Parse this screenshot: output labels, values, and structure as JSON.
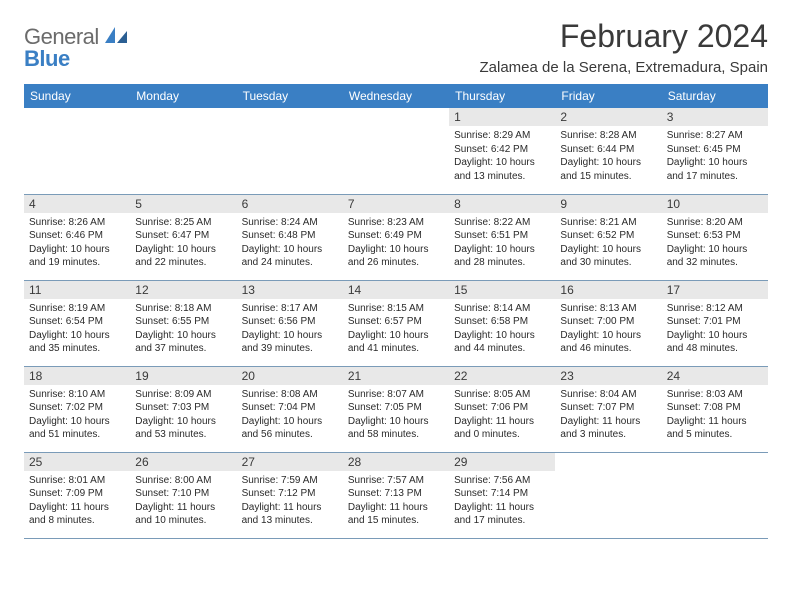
{
  "logo": {
    "text1": "General",
    "text2": "Blue"
  },
  "title": "February 2024",
  "location": "Zalamea de la Serena, Extremadura, Spain",
  "colors": {
    "header_bg": "#3a7fc4",
    "header_fg": "#ffffff",
    "daynum_bg": "#e8e8e8",
    "border": "#7a9bb8",
    "text": "#3a3a3a",
    "body_text": "#2a2a2a",
    "logo_gray": "#6b6b6b",
    "logo_blue": "#3a7fc4"
  },
  "typography": {
    "title_fontsize": 32,
    "location_fontsize": 15,
    "header_fontsize": 12,
    "daynum_fontsize": 12,
    "body_fontsize": 10
  },
  "weekdays": [
    "Sunday",
    "Monday",
    "Tuesday",
    "Wednesday",
    "Thursday",
    "Friday",
    "Saturday"
  ],
  "weeks": [
    [
      null,
      null,
      null,
      null,
      {
        "n": "1",
        "sunrise": "8:29 AM",
        "sunset": "6:42 PM",
        "daylight_h": "10",
        "daylight_m": "13"
      },
      {
        "n": "2",
        "sunrise": "8:28 AM",
        "sunset": "6:44 PM",
        "daylight_h": "10",
        "daylight_m": "15"
      },
      {
        "n": "3",
        "sunrise": "8:27 AM",
        "sunset": "6:45 PM",
        "daylight_h": "10",
        "daylight_m": "17"
      }
    ],
    [
      {
        "n": "4",
        "sunrise": "8:26 AM",
        "sunset": "6:46 PM",
        "daylight_h": "10",
        "daylight_m": "19"
      },
      {
        "n": "5",
        "sunrise": "8:25 AM",
        "sunset": "6:47 PM",
        "daylight_h": "10",
        "daylight_m": "22"
      },
      {
        "n": "6",
        "sunrise": "8:24 AM",
        "sunset": "6:48 PM",
        "daylight_h": "10",
        "daylight_m": "24"
      },
      {
        "n": "7",
        "sunrise": "8:23 AM",
        "sunset": "6:49 PM",
        "daylight_h": "10",
        "daylight_m": "26"
      },
      {
        "n": "8",
        "sunrise": "8:22 AM",
        "sunset": "6:51 PM",
        "daylight_h": "10",
        "daylight_m": "28"
      },
      {
        "n": "9",
        "sunrise": "8:21 AM",
        "sunset": "6:52 PM",
        "daylight_h": "10",
        "daylight_m": "30"
      },
      {
        "n": "10",
        "sunrise": "8:20 AM",
        "sunset": "6:53 PM",
        "daylight_h": "10",
        "daylight_m": "32"
      }
    ],
    [
      {
        "n": "11",
        "sunrise": "8:19 AM",
        "sunset": "6:54 PM",
        "daylight_h": "10",
        "daylight_m": "35"
      },
      {
        "n": "12",
        "sunrise": "8:18 AM",
        "sunset": "6:55 PM",
        "daylight_h": "10",
        "daylight_m": "37"
      },
      {
        "n": "13",
        "sunrise": "8:17 AM",
        "sunset": "6:56 PM",
        "daylight_h": "10",
        "daylight_m": "39"
      },
      {
        "n": "14",
        "sunrise": "8:15 AM",
        "sunset": "6:57 PM",
        "daylight_h": "10",
        "daylight_m": "41"
      },
      {
        "n": "15",
        "sunrise": "8:14 AM",
        "sunset": "6:58 PM",
        "daylight_h": "10",
        "daylight_m": "44"
      },
      {
        "n": "16",
        "sunrise": "8:13 AM",
        "sunset": "7:00 PM",
        "daylight_h": "10",
        "daylight_m": "46"
      },
      {
        "n": "17",
        "sunrise": "8:12 AM",
        "sunset": "7:01 PM",
        "daylight_h": "10",
        "daylight_m": "48"
      }
    ],
    [
      {
        "n": "18",
        "sunrise": "8:10 AM",
        "sunset": "7:02 PM",
        "daylight_h": "10",
        "daylight_m": "51"
      },
      {
        "n": "19",
        "sunrise": "8:09 AM",
        "sunset": "7:03 PM",
        "daylight_h": "10",
        "daylight_m": "53"
      },
      {
        "n": "20",
        "sunrise": "8:08 AM",
        "sunset": "7:04 PM",
        "daylight_h": "10",
        "daylight_m": "56"
      },
      {
        "n": "21",
        "sunrise": "8:07 AM",
        "sunset": "7:05 PM",
        "daylight_h": "10",
        "daylight_m": "58"
      },
      {
        "n": "22",
        "sunrise": "8:05 AM",
        "sunset": "7:06 PM",
        "daylight_h": "11",
        "daylight_m": "0"
      },
      {
        "n": "23",
        "sunrise": "8:04 AM",
        "sunset": "7:07 PM",
        "daylight_h": "11",
        "daylight_m": "3"
      },
      {
        "n": "24",
        "sunrise": "8:03 AM",
        "sunset": "7:08 PM",
        "daylight_h": "11",
        "daylight_m": "5"
      }
    ],
    [
      {
        "n": "25",
        "sunrise": "8:01 AM",
        "sunset": "7:09 PM",
        "daylight_h": "11",
        "daylight_m": "8"
      },
      {
        "n": "26",
        "sunrise": "8:00 AM",
        "sunset": "7:10 PM",
        "daylight_h": "11",
        "daylight_m": "10"
      },
      {
        "n": "27",
        "sunrise": "7:59 AM",
        "sunset": "7:12 PM",
        "daylight_h": "11",
        "daylight_m": "13"
      },
      {
        "n": "28",
        "sunrise": "7:57 AM",
        "sunset": "7:13 PM",
        "daylight_h": "11",
        "daylight_m": "15"
      },
      {
        "n": "29",
        "sunrise": "7:56 AM",
        "sunset": "7:14 PM",
        "daylight_h": "11",
        "daylight_m": "17"
      },
      null,
      null
    ]
  ],
  "labels": {
    "sunrise": "Sunrise:",
    "sunset": "Sunset:",
    "daylight": "Daylight:",
    "hours": "hours",
    "and": "and",
    "minutes": "minutes."
  }
}
